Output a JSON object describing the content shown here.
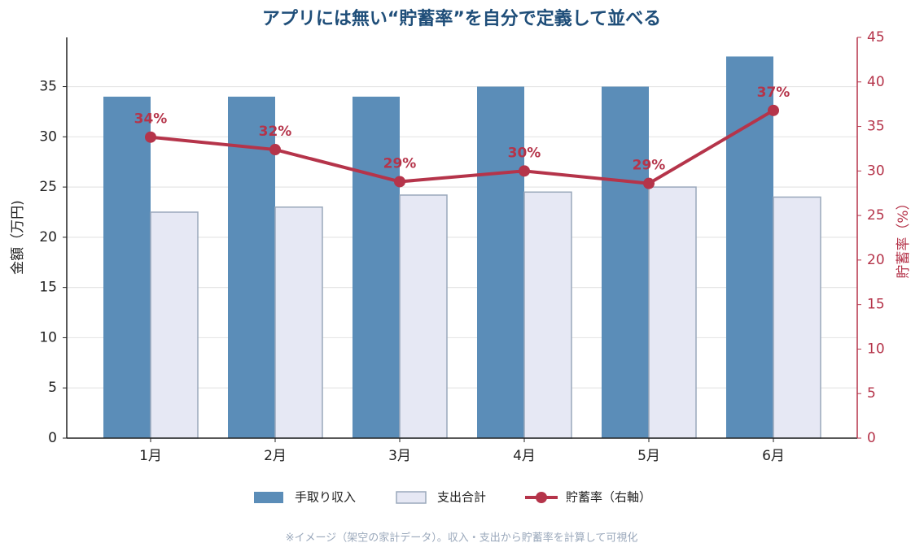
{
  "chart_data": {
    "type": "bar_line",
    "title": "アプリには無い“貯蓄率”を自分で定義して並べる",
    "ylabel": "金額（万円)",
    "y2label": "貯蓄率（%）",
    "categories": [
      "1月",
      "2月",
      "3月",
      "4月",
      "5月",
      "6月"
    ],
    "series": [
      {
        "name": "手取り収入",
        "type": "bar",
        "color": "#5b8db8",
        "values": [
          34,
          34,
          34,
          35,
          35,
          38
        ]
      },
      {
        "name": "支出合計",
        "type": "bar",
        "color": "#e6e8f4",
        "edgecolor": "#9aa8bb",
        "values": [
          22.5,
          23,
          24.2,
          24.5,
          25,
          24.0
        ]
      },
      {
        "name": "貯蓄率（右軸）",
        "type": "line",
        "axis": "y2",
        "color": "#b5344a",
        "values": [
          33.8,
          32.4,
          28.8,
          30.0,
          28.6,
          36.8
        ],
        "value_labels": [
          "34%",
          "32%",
          "29%",
          "30%",
          "29%",
          "37%"
        ]
      }
    ],
    "ylim": [
      0,
      39.9
    ],
    "yticks": [
      0,
      5,
      10,
      15,
      20,
      25,
      30,
      35
    ],
    "y2lim": [
      0,
      45
    ],
    "y2ticks": [
      0,
      5,
      10,
      15,
      20,
      25,
      30,
      35,
      40,
      45
    ],
    "grid": true,
    "legend": "bottom",
    "footnote": "※イメージ（架空の家計データ）。収入・支出から貯蓄率を計算して可視化"
  }
}
